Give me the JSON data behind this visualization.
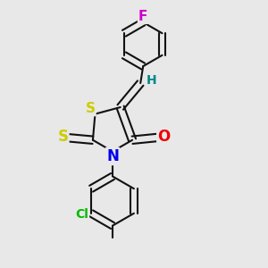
{
  "background_color": "#e8e8e8",
  "atom_colors": {
    "F": "#cc00cc",
    "Cl": "#00bb00",
    "S": "#cccc00",
    "N": "#0000ee",
    "O": "#ee0000",
    "H": "#008888",
    "C": "#111111"
  },
  "bond_color": "#111111",
  "bond_width": 1.5,
  "font_size": 11
}
